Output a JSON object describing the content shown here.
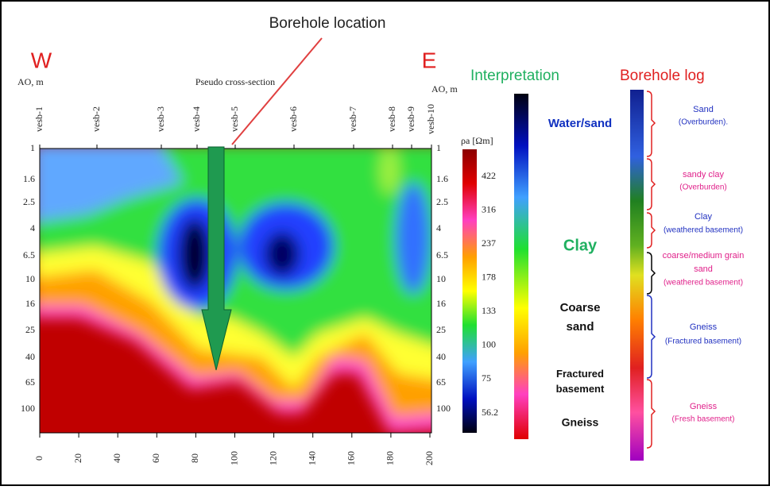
{
  "title": "Borehole location",
  "west": "W",
  "east": "E",
  "left_axis_label": "AO, m",
  "right_axis_label": "AO, m",
  "section_label": "Pseudo cross-section",
  "stations": [
    "vesb-1",
    "vesb-2",
    "vesb-3",
    "vesb-4",
    "vesb-5",
    "vesb-6",
    "vesb-7",
    "vesb-8",
    "vesb-9",
    "vesb-10"
  ],
  "depths": [
    "1",
    "1.6",
    "2.5",
    "4",
    "6.5",
    "10",
    "16",
    "25",
    "40",
    "65",
    "100"
  ],
  "distances": [
    "0",
    "20",
    "40",
    "60",
    "80",
    "100",
    "120",
    "140",
    "160",
    "180",
    "200"
  ],
  "scale": {
    "unit": "ρa [Ωm]",
    "ticks": [
      "422",
      "316",
      "237",
      "178",
      "133",
      "100",
      "75",
      "56.2"
    ]
  },
  "interpretation": {
    "title": "Interpretation",
    "labels": [
      "Water/sand",
      "Clay",
      "Coarse sand",
      "Fractured basement",
      "Gneiss"
    ]
  },
  "borehole_log": {
    "title": "Borehole log",
    "units": [
      {
        "name": "Sand",
        "note": "(Overburden)."
      },
      {
        "name": "sandy clay",
        "note": "(Overburden)"
      },
      {
        "name": "Clay",
        "note": "(weathered basement)"
      },
      {
        "name": "coarse/medium grain sand",
        "note": "(weathered basement)"
      },
      {
        "name": "Gneiss",
        "note": "(Fractured basement)"
      },
      {
        "name": "Gneiss",
        "note": "(Fresh basement)"
      }
    ]
  }
}
